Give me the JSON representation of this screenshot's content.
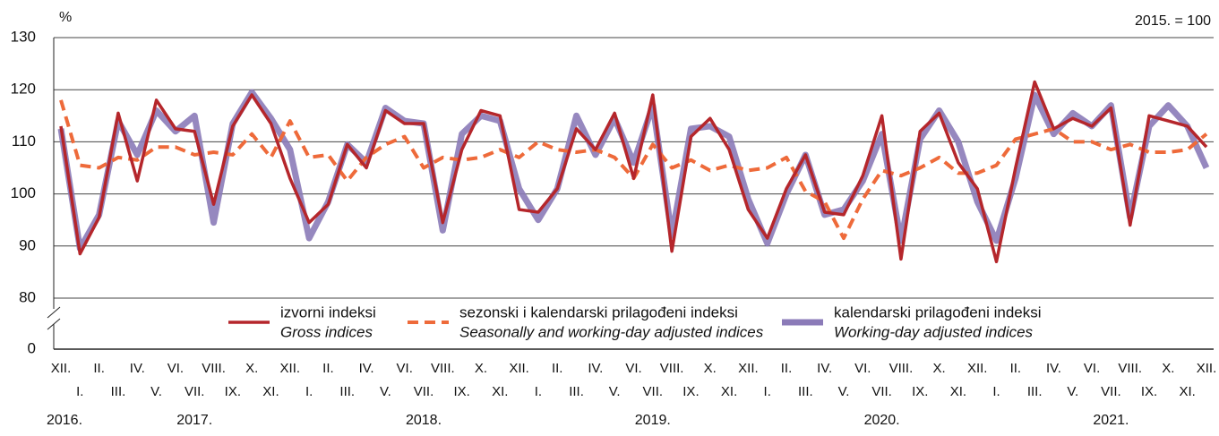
{
  "chart_data": {
    "type": "line",
    "y_unit_label": "%",
    "base_note": "2015. = 100",
    "categories": [
      "XII.",
      "I.",
      "II.",
      "III.",
      "IV.",
      "V.",
      "VI.",
      "VII.",
      "VIII.",
      "IX.",
      "X.",
      "XI.",
      "XII.",
      "I.",
      "II.",
      "III.",
      "IV.",
      "V.",
      "VI.",
      "VII.",
      "VIII.",
      "IX.",
      "X.",
      "XI.",
      "XII.",
      "I.",
      "II.",
      "III.",
      "IV.",
      "V.",
      "VI.",
      "VII.",
      "VIII.",
      "IX.",
      "X.",
      "XI.",
      "XII.",
      "I.",
      "II.",
      "III.",
      "IV.",
      "V.",
      "VI.",
      "VII.",
      "VIII.",
      "IX.",
      "X.",
      "XI.",
      "XII.",
      "I.",
      "II.",
      "III.",
      "IV.",
      "V.",
      "VI.",
      "VII.",
      "VIII.",
      "IX.",
      "X.",
      "XI.",
      "XII."
    ],
    "year_labels": [
      "2016.",
      null,
      null,
      null,
      null,
      null,
      null,
      "2017.",
      null,
      null,
      null,
      null,
      null,
      null,
      null,
      null,
      null,
      null,
      null,
      "2018.",
      null,
      null,
      null,
      null,
      null,
      null,
      null,
      null,
      null,
      null,
      null,
      "2019.",
      null,
      null,
      null,
      null,
      null,
      null,
      null,
      null,
      null,
      null,
      null,
      "2020.",
      null,
      null,
      null,
      null,
      null,
      null,
      null,
      null,
      null,
      null,
      null,
      "2021.",
      null,
      null,
      null,
      null,
      null
    ],
    "series": [
      {
        "name": "izvorni indeksi",
        "name_en": "Gross indices",
        "color": "#b5262b",
        "style": "solid",
        "values": [
          113,
          88.5,
          95.5,
          115.5,
          102.5,
          118,
          112.5,
          112,
          98,
          113,
          119,
          113.5,
          103,
          94.5,
          98,
          109.5,
          105,
          116,
          113.5,
          113.5,
          94.5,
          108.5,
          116,
          115,
          97,
          96.5,
          101,
          112.5,
          108.5,
          115.5,
          103,
          119,
          89,
          111,
          114.5,
          108.5,
          97,
          91.5,
          101,
          107.5,
          96.5,
          96,
          103.5,
          115,
          87.5,
          112,
          115.5,
          106,
          101,
          87,
          105,
          121.5,
          112.5,
          114.5,
          113,
          116.5,
          94,
          115,
          114,
          113,
          109
        ]
      },
      {
        "name": "sezonski i kalendarski prilagođeni indeksi",
        "name_en": "Seasonally and working-day adjusted indices",
        "color": "#ee6a3a",
        "style": "dashed",
        "values": [
          118,
          105.5,
          105,
          107,
          106.5,
          109,
          109,
          107.5,
          108,
          107.5,
          111.5,
          107,
          114,
          107,
          107.5,
          102.5,
          107,
          109.5,
          111,
          105,
          107,
          106.5,
          107,
          108.5,
          107,
          110,
          108.5,
          108,
          108.5,
          107,
          103,
          109.5,
          105,
          106.5,
          104.5,
          105.5,
          104.5,
          105,
          107,
          100.5,
          98.5,
          91.5,
          99,
          104.5,
          103.5,
          105,
          107,
          104,
          104,
          105.5,
          110.5,
          111.5,
          112.5,
          110,
          110,
          108.5,
          109.5,
          108,
          108,
          108.5,
          111.5
        ]
      },
      {
        "name": "kalendarski prilagođeni indeksi",
        "name_en": "Working-day adjusted indices",
        "color": "#8b7bb8",
        "style": "thick",
        "values": [
          112.5,
          89.5,
          96,
          114,
          107.5,
          116,
          112,
          115,
          94.5,
          113.5,
          119.5,
          114.5,
          108.5,
          91.5,
          98.5,
          109.5,
          106,
          116.5,
          114,
          113.5,
          93,
          111.5,
          115,
          114,
          101,
          95,
          101,
          115,
          107.5,
          114.5,
          106,
          117,
          92,
          112.5,
          113,
          111,
          99,
          90.5,
          100,
          107.5,
          96,
          97,
          102.5,
          111.5,
          91,
          110.5,
          116,
          110,
          98.5,
          91,
          103,
          119,
          111.5,
          115.5,
          113,
          117,
          95.5,
          113,
          117,
          113,
          105
        ]
      }
    ],
    "ylim": [
      80,
      130
    ],
    "yticks": [
      0,
      80,
      90,
      100,
      110,
      120,
      130
    ],
    "axis_break": true,
    "grid": true
  }
}
